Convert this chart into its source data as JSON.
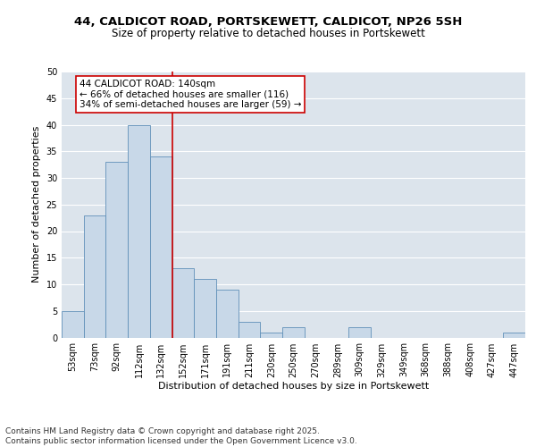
{
  "title_line1": "44, CALDICOT ROAD, PORTSKEWETT, CALDICOT, NP26 5SH",
  "title_line2": "Size of property relative to detached houses in Portskewett",
  "xlabel": "Distribution of detached houses by size in Portskewett",
  "ylabel": "Number of detached properties",
  "categories": [
    "53sqm",
    "73sqm",
    "92sqm",
    "112sqm",
    "132sqm",
    "152sqm",
    "171sqm",
    "191sqm",
    "211sqm",
    "230sqm",
    "250sqm",
    "270sqm",
    "289sqm",
    "309sqm",
    "329sqm",
    "349sqm",
    "368sqm",
    "388sqm",
    "408sqm",
    "427sqm",
    "447sqm"
  ],
  "values": [
    5,
    23,
    33,
    40,
    34,
    13,
    11,
    9,
    3,
    1,
    2,
    0,
    0,
    2,
    0,
    0,
    0,
    0,
    0,
    0,
    1
  ],
  "bar_color": "#c8d8e8",
  "bar_edge_color": "#6090b8",
  "highlight_line_color": "#cc0000",
  "annotation_text": "44 CALDICOT ROAD: 140sqm\n← 66% of detached houses are smaller (116)\n34% of semi-detached houses are larger (59) →",
  "annotation_box_color": "#ffffff",
  "annotation_box_edge": "#cc0000",
  "ylim": [
    0,
    50
  ],
  "yticks": [
    0,
    5,
    10,
    15,
    20,
    25,
    30,
    35,
    40,
    45,
    50
  ],
  "background_color": "#dce4ec",
  "footer_text": "Contains HM Land Registry data © Crown copyright and database right 2025.\nContains public sector information licensed under the Open Government Licence v3.0.",
  "title_fontsize": 9.5,
  "subtitle_fontsize": 8.5,
  "axis_label_fontsize": 8,
  "tick_fontsize": 7,
  "annotation_fontsize": 7.5,
  "footer_fontsize": 6.5
}
